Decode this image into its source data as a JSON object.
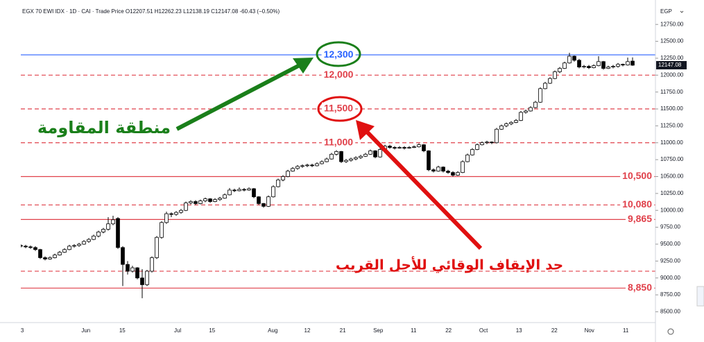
{
  "chart_data": {
    "type": "candlestick",
    "legend_text": "EGX 70 EWI IDX · 1D · CAI · Trade Price O12207.51 H12262.23 L12138.19 C12147.08 -60.43 (−0.50%)",
    "currency": "EGP",
    "up_color": "#ffffff",
    "down_color": "#000000",
    "outline_color": "#000000",
    "xlim": [
      -4,
      130
    ],
    "ylim": [
      8340,
      13060
    ],
    "grid": false,
    "xticks": [
      {
        "value": 0.3,
        "label": "3"
      },
      {
        "value": 13.4,
        "label": "Jun"
      },
      {
        "value": 20.9,
        "label": "15"
      },
      {
        "value": 32.3,
        "label": "Jul"
      },
      {
        "value": 39.4,
        "label": "15"
      },
      {
        "value": 51.9,
        "label": "Aug"
      },
      {
        "value": 59,
        "label": "12"
      },
      {
        "value": 66.3,
        "label": "21"
      },
      {
        "value": 73.6,
        "label": "Sep"
      },
      {
        "value": 80.9,
        "label": "11"
      },
      {
        "value": 88.1,
        "label": "22"
      },
      {
        "value": 95.3,
        "label": "Oct"
      },
      {
        "value": 102.6,
        "label": "13"
      },
      {
        "value": 109.9,
        "label": "22"
      },
      {
        "value": 117.1,
        "label": "Nov"
      },
      {
        "value": 124.6,
        "label": "11"
      }
    ],
    "yticks": [
      {
        "value": 8500,
        "label": "8500.00"
      },
      {
        "value": 8750,
        "label": "8750.00"
      },
      {
        "value": 9000,
        "label": "9000.00"
      },
      {
        "value": 9250,
        "label": "9250.00"
      },
      {
        "value": 9500,
        "label": "9500.00"
      },
      {
        "value": 9750,
        "label": "9750.00"
      },
      {
        "value": 10000,
        "label": "10000.00"
      },
      {
        "value": 10250,
        "label": "10250.00"
      },
      {
        "value": 10500,
        "label": "10500.00"
      },
      {
        "value": 10750,
        "label": "10750.00"
      },
      {
        "value": 11000,
        "label": "11000.00"
      },
      {
        "value": 11250,
        "label": "11250.00"
      },
      {
        "value": 11500,
        "label": "11500.00"
      },
      {
        "value": 11750,
        "label": "11750.00"
      },
      {
        "value": 12000,
        "label": "12000.00"
      },
      {
        "value": 12250,
        "label": "12250.00"
      },
      {
        "value": 12500,
        "label": "12500.00"
      },
      {
        "value": 12750,
        "label": "12750.00"
      }
    ],
    "levels": [
      {
        "value": 12300,
        "label": "12,300",
        "color": "#2962ff",
        "dashed": false
      },
      {
        "value": 12000,
        "label": "12,000",
        "color": "#e0404a",
        "dashed": true
      },
      {
        "value": 11500,
        "label": "11,500",
        "color": "#e0404a",
        "dashed": true
      },
      {
        "value": 11000,
        "label": "11,000",
        "color": "#e0404a",
        "dashed": true
      },
      {
        "value": 10500,
        "label": "10,500",
        "color": "#e0404a",
        "dashed": false
      },
      {
        "value": 10080,
        "label": "10,080",
        "color": "#e0404a",
        "dashed": true
      },
      {
        "value": 9865,
        "label": "9,865",
        "color": "#e0404a",
        "dashed": false
      },
      {
        "value": 9100,
        "color": "#e0404a",
        "dashed": true
      },
      {
        "value": 8850,
        "label": "8,850",
        "color": "#e0404a",
        "dashed": false
      }
    ],
    "annotations": [
      {
        "text": "منطقة المقاومة",
        "color": "#1a7f1a"
      },
      {
        "text": "حد الإيقاف الوقائي للأجل القريب",
        "color": "#e01010"
      }
    ],
    "ohlc": [
      [
        9480,
        9500,
        9450,
        9470
      ],
      [
        9470,
        9490,
        9440,
        9460
      ],
      [
        9460,
        9480,
        9430,
        9450
      ],
      [
        9450,
        9470,
        9400,
        9420
      ],
      [
        9420,
        9430,
        9280,
        9300
      ],
      [
        9300,
        9320,
        9260,
        9280
      ],
      [
        9280,
        9320,
        9270,
        9300
      ],
      [
        9300,
        9360,
        9290,
        9340
      ],
      [
        9340,
        9400,
        9330,
        9380
      ],
      [
        9380,
        9440,
        9370,
        9420
      ],
      [
        9420,
        9490,
        9410,
        9470
      ],
      [
        9470,
        9500,
        9450,
        9480
      ],
      [
        9480,
        9520,
        9460,
        9500
      ],
      [
        9500,
        9560,
        9490,
        9540
      ],
      [
        9540,
        9590,
        9520,
        9570
      ],
      [
        9570,
        9640,
        9560,
        9620
      ],
      [
        9620,
        9700,
        9600,
        9680
      ],
      [
        9680,
        9740,
        9660,
        9720
      ],
      [
        9720,
        9900,
        9700,
        9800
      ],
      [
        9800,
        9920,
        9780,
        9860
      ],
      [
        9880,
        9900,
        9430,
        9450
      ],
      [
        9450,
        9470,
        8880,
        9200
      ],
      [
        9200,
        9250,
        9050,
        9100
      ],
      [
        9100,
        9180,
        9080,
        9150
      ],
      [
        9150,
        9160,
        8980,
        9000
      ],
      [
        9000,
        9130,
        8700,
        8900
      ],
      [
        8900,
        9120,
        8880,
        9100
      ],
      [
        9100,
        9320,
        9080,
        9300
      ],
      [
        9300,
        9620,
        9280,
        9600
      ],
      [
        9600,
        9840,
        9580,
        9820
      ],
      [
        9820,
        9980,
        9800,
        9950
      ],
      [
        9950,
        9970,
        9900,
        9940
      ],
      [
        9940,
        9990,
        9920,
        9970
      ],
      [
        9970,
        10020,
        9950,
        10000
      ],
      [
        10000,
        10130,
        9990,
        10110
      ],
      [
        10110,
        10150,
        10090,
        10130
      ],
      [
        10130,
        10150,
        10080,
        10100
      ],
      [
        10100,
        10160,
        10090,
        10140
      ],
      [
        10140,
        10190,
        10120,
        10170
      ],
      [
        10170,
        10180,
        10110,
        10130
      ],
      [
        10130,
        10180,
        10120,
        10160
      ],
      [
        10160,
        10200,
        10140,
        10180
      ],
      [
        10180,
        10250,
        10170,
        10230
      ],
      [
        10230,
        10330,
        10220,
        10300
      ],
      [
        10300,
        10320,
        10270,
        10290
      ],
      [
        10290,
        10340,
        10280,
        10310
      ],
      [
        10310,
        10330,
        10280,
        10300
      ],
      [
        10300,
        10340,
        10290,
        10320
      ],
      [
        10320,
        10330,
        10180,
        10200
      ],
      [
        10200,
        10210,
        10080,
        10100
      ],
      [
        10100,
        10110,
        10040,
        10060
      ],
      [
        10060,
        10220,
        10050,
        10200
      ],
      [
        10200,
        10370,
        10190,
        10350
      ],
      [
        10350,
        10470,
        10340,
        10450
      ],
      [
        10450,
        10520,
        10430,
        10500
      ],
      [
        10500,
        10600,
        10490,
        10580
      ],
      [
        10580,
        10640,
        10570,
        10620
      ],
      [
        10620,
        10670,
        10600,
        10650
      ],
      [
        10650,
        10680,
        10630,
        10660
      ],
      [
        10660,
        10690,
        10640,
        10670
      ],
      [
        10670,
        10690,
        10640,
        10660
      ],
      [
        10660,
        10710,
        10650,
        10690
      ],
      [
        10690,
        10740,
        10680,
        10720
      ],
      [
        10720,
        10780,
        10710,
        10760
      ],
      [
        10760,
        10850,
        10750,
        10830
      ],
      [
        10830,
        10890,
        10810,
        10870
      ],
      [
        10870,
        10880,
        10700,
        10720
      ],
      [
        10720,
        10760,
        10700,
        10740
      ],
      [
        10740,
        10780,
        10720,
        10760
      ],
      [
        10760,
        10800,
        10740,
        10780
      ],
      [
        10780,
        10820,
        10760,
        10800
      ],
      [
        10800,
        10850,
        10790,
        10830
      ],
      [
        10830,
        10900,
        10820,
        10880
      ],
      [
        10880,
        10890,
        10770,
        10790
      ],
      [
        10790,
        10920,
        10780,
        10900
      ],
      [
        10900,
        10970,
        10890,
        10950
      ],
      [
        10950,
        10970,
        10910,
        10930
      ],
      [
        10930,
        10950,
        10900,
        10920
      ],
      [
        10920,
        10950,
        10910,
        10930
      ],
      [
        10930,
        10950,
        10900,
        10920
      ],
      [
        10920,
        10950,
        10910,
        10930
      ],
      [
        10930,
        10960,
        10920,
        10940
      ],
      [
        10940,
        10990,
        10930,
        10970
      ],
      [
        10970,
        10980,
        10860,
        10880
      ],
      [
        10880,
        10890,
        10580,
        10600
      ],
      [
        10600,
        10620,
        10560,
        10580
      ],
      [
        10580,
        10660,
        10570,
        10640
      ],
      [
        10640,
        10650,
        10560,
        10580
      ],
      [
        10580,
        10600,
        10540,
        10560
      ],
      [
        10560,
        10580,
        10500,
        10520
      ],
      [
        10520,
        10580,
        10510,
        10560
      ],
      [
        10560,
        10740,
        10550,
        10720
      ],
      [
        10720,
        10840,
        10710,
        10820
      ],
      [
        10820,
        10920,
        10810,
        10900
      ],
      [
        10900,
        10990,
        10890,
        10970
      ],
      [
        10970,
        11020,
        10960,
        11000
      ],
      [
        11000,
        11030,
        10980,
        11010
      ],
      [
        11010,
        11020,
        10980,
        11000
      ],
      [
        11000,
        11220,
        10990,
        11200
      ],
      [
        11200,
        11270,
        11190,
        11250
      ],
      [
        11250,
        11300,
        11230,
        11280
      ],
      [
        11280,
        11320,
        11260,
        11300
      ],
      [
        11300,
        11350,
        11290,
        11330
      ],
      [
        11330,
        11470,
        11320,
        11450
      ],
      [
        11450,
        11490,
        11430,
        11470
      ],
      [
        11470,
        11540,
        11460,
        11520
      ],
      [
        11520,
        11620,
        11510,
        11600
      ],
      [
        11600,
        11820,
        11590,
        11800
      ],
      [
        11800,
        11900,
        11790,
        11880
      ],
      [
        11880,
        11970,
        11870,
        11950
      ],
      [
        11950,
        12070,
        11940,
        12050
      ],
      [
        12050,
        12120,
        12030,
        12100
      ],
      [
        12100,
        12200,
        12090,
        12180
      ],
      [
        12180,
        12330,
        12170,
        12280
      ],
      [
        12280,
        12290,
        12200,
        12220
      ],
      [
        12220,
        12240,
        12100,
        12120
      ],
      [
        12120,
        12150,
        12100,
        12130
      ],
      [
        12130,
        12150,
        12090,
        12110
      ],
      [
        12110,
        12160,
        12100,
        12140
      ],
      [
        12140,
        12280,
        12130,
        12200
      ],
      [
        12200,
        12210,
        12080,
        12100
      ],
      [
        12100,
        12140,
        12090,
        12120
      ],
      [
        12120,
        12150,
        12100,
        12130
      ],
      [
        12130,
        12180,
        12110,
        12160
      ],
      [
        12160,
        12170,
        12130,
        12150
      ],
      [
        12150,
        12260,
        12140,
        12200
      ],
      [
        12207.51,
        12262.23,
        12138.19,
        12147.08
      ]
    ]
  }
}
